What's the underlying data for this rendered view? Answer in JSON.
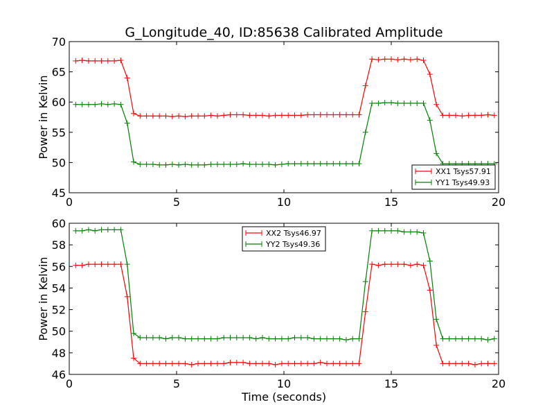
{
  "chart_data": [
    {
      "type": "line",
      "title": "G_Longitude_40, ID:85638 Calibrated Amplitude",
      "xlabel": "",
      "ylabel": "Power in Kelvin",
      "xlim": [
        0,
        20
      ],
      "ylim": [
        45,
        70
      ],
      "x_ticks": [
        "0",
        "5",
        "10",
        "15",
        "20"
      ],
      "y_ticks": [
        "45",
        "50",
        "55",
        "60",
        "65",
        "70"
      ],
      "legend_position": "lower-right",
      "x": [
        0.3,
        0.6,
        0.9,
        1.2,
        1.5,
        1.8,
        2.1,
        2.4,
        2.7,
        3.0,
        3.3,
        3.6,
        3.9,
        4.2,
        4.5,
        4.8,
        5.1,
        5.4,
        5.7,
        6.0,
        6.3,
        6.6,
        6.9,
        7.2,
        7.5,
        7.8,
        8.1,
        8.4,
        8.7,
        9.0,
        9.3,
        9.6,
        9.9,
        10.2,
        10.5,
        10.8,
        11.1,
        11.4,
        11.7,
        12.0,
        12.3,
        12.6,
        12.9,
        13.2,
        13.5,
        13.8,
        14.1,
        14.4,
        14.7,
        15.0,
        15.3,
        15.6,
        15.9,
        16.2,
        16.5,
        16.8,
        17.1,
        17.4,
        17.7,
        18.0,
        18.3,
        18.6,
        18.9,
        19.2,
        19.5,
        19.8
      ],
      "series": [
        {
          "name": "XX1 Tsys57.91",
          "color": "#ff0000",
          "values": [
            66.8,
            66.9,
            66.8,
            66.8,
            66.8,
            66.8,
            66.8,
            66.9,
            64.0,
            58.1,
            57.7,
            57.7,
            57.7,
            57.7,
            57.7,
            57.6,
            57.7,
            57.6,
            57.7,
            57.7,
            57.7,
            57.8,
            57.7,
            57.8,
            57.9,
            57.9,
            57.9,
            57.8,
            57.8,
            57.8,
            57.7,
            57.8,
            57.8,
            57.8,
            57.8,
            57.8,
            57.9,
            57.9,
            57.9,
            57.9,
            57.9,
            57.9,
            57.9,
            57.9,
            57.9,
            62.7,
            67.1,
            67.0,
            67.1,
            67.1,
            67.0,
            67.1,
            67.0,
            67.1,
            66.9,
            64.6,
            59.6,
            57.8,
            57.8,
            57.8,
            57.7,
            57.8,
            57.8,
            57.8,
            57.9,
            57.8
          ]
        },
        {
          "name": "YY1 Tsys49.93",
          "color": "#008000",
          "values": [
            59.6,
            59.6,
            59.6,
            59.6,
            59.7,
            59.6,
            59.7,
            59.6,
            56.5,
            50.1,
            49.7,
            49.7,
            49.7,
            49.6,
            49.6,
            49.7,
            49.6,
            49.7,
            49.6,
            49.6,
            49.6,
            49.7,
            49.7,
            49.7,
            49.7,
            49.7,
            49.8,
            49.7,
            49.7,
            49.7,
            49.7,
            49.6,
            49.7,
            49.8,
            49.8,
            49.8,
            49.8,
            49.8,
            49.8,
            49.8,
            49.8,
            49.8,
            49.8,
            49.8,
            49.8,
            55.0,
            59.8,
            59.8,
            59.9,
            59.9,
            59.8,
            59.8,
            59.8,
            59.8,
            59.8,
            57.0,
            51.5,
            49.8,
            49.8,
            49.8,
            49.8,
            49.8,
            49.8,
            49.8,
            49.8,
            49.8
          ]
        }
      ]
    },
    {
      "type": "line",
      "title": "",
      "xlabel": "Time (seconds)",
      "ylabel": "Power in Kelvin",
      "xlim": [
        0,
        20
      ],
      "ylim": [
        46,
        60
      ],
      "x_ticks": [
        "0",
        "5",
        "10",
        "15",
        "20"
      ],
      "y_ticks": [
        "46",
        "48",
        "50",
        "52",
        "54",
        "56",
        "58",
        "60"
      ],
      "legend_position": "upper-center",
      "x": [
        0.3,
        0.6,
        0.9,
        1.2,
        1.5,
        1.8,
        2.1,
        2.4,
        2.7,
        3.0,
        3.3,
        3.6,
        3.9,
        4.2,
        4.5,
        4.8,
        5.1,
        5.4,
        5.7,
        6.0,
        6.3,
        6.6,
        6.9,
        7.2,
        7.5,
        7.8,
        8.1,
        8.4,
        8.7,
        9.0,
        9.3,
        9.6,
        9.9,
        10.2,
        10.5,
        10.8,
        11.1,
        11.4,
        11.7,
        12.0,
        12.3,
        12.6,
        12.9,
        13.2,
        13.5,
        13.8,
        14.1,
        14.4,
        14.7,
        15.0,
        15.3,
        15.6,
        15.9,
        16.2,
        16.5,
        16.8,
        17.1,
        17.4,
        17.7,
        18.0,
        18.3,
        18.6,
        18.9,
        19.2,
        19.5,
        19.8
      ],
      "series": [
        {
          "name": "XX2 Tsys46.97",
          "color": "#ff0000",
          "values": [
            56.1,
            56.1,
            56.2,
            56.2,
            56.2,
            56.2,
            56.2,
            56.2,
            53.2,
            47.5,
            47.0,
            47.0,
            47.0,
            47.0,
            47.0,
            47.0,
            47.0,
            47.0,
            46.9,
            47.0,
            47.0,
            47.0,
            47.0,
            47.0,
            47.1,
            47.1,
            47.1,
            47.0,
            47.0,
            47.0,
            47.0,
            46.9,
            47.0,
            47.0,
            47.0,
            47.0,
            47.0,
            47.0,
            47.1,
            47.0,
            47.0,
            47.0,
            47.0,
            47.0,
            47.0,
            51.8,
            56.2,
            56.1,
            56.2,
            56.2,
            56.2,
            56.2,
            56.1,
            56.2,
            56.1,
            53.8,
            48.7,
            47.0,
            47.0,
            47.0,
            47.0,
            47.0,
            46.9,
            47.0,
            47.0,
            47.0
          ]
        },
        {
          "name": "YY2 Tsys49.36",
          "color": "#008000",
          "values": [
            59.3,
            59.3,
            59.4,
            59.3,
            59.4,
            59.4,
            59.4,
            59.4,
            56.2,
            49.8,
            49.4,
            49.4,
            49.4,
            49.4,
            49.3,
            49.4,
            49.4,
            49.3,
            49.3,
            49.3,
            49.3,
            49.3,
            49.3,
            49.4,
            49.4,
            49.4,
            49.4,
            49.4,
            49.3,
            49.4,
            49.3,
            49.3,
            49.3,
            49.3,
            49.4,
            49.4,
            49.4,
            49.3,
            49.3,
            49.3,
            49.3,
            49.3,
            49.2,
            49.3,
            49.3,
            54.6,
            59.3,
            59.3,
            59.3,
            59.3,
            59.3,
            59.2,
            59.2,
            59.2,
            59.1,
            56.5,
            51.1,
            49.3,
            49.3,
            49.3,
            49.3,
            49.3,
            49.3,
            49.3,
            49.2,
            49.3
          ]
        }
      ]
    }
  ]
}
